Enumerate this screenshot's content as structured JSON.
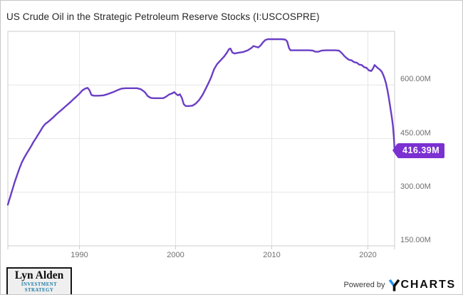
{
  "header": {
    "title": "US Crude Oil in the Strategic Petroleum Reserve Stocks (I:USCOSPRE)"
  },
  "chart_data": {
    "type": "line",
    "title": "US Crude Oil in the Strategic Petroleum Reserve Stocks (I:USCOSPRE)",
    "series_name": "US Crude Oil in the Strategic Petroleum Reserve Stocks",
    "unit": "barrels, millions (M)",
    "xlim": [
      1982.55,
      2022.78
    ],
    "ylim": [
      150,
      750
    ],
    "grid": true,
    "legend_position": "none",
    "line_color": "#6a3ec6",
    "badge_color": "#7b30d2",
    "grid_color": "#e6e6e6",
    "border_color": "#cccccc",
    "label_color": "#6f6f6f",
    "x_ticks": [
      {
        "label": "1990",
        "year": 1990
      },
      {
        "label": "2000",
        "year": 2000
      },
      {
        "label": "2010",
        "year": 2010
      },
      {
        "label": "2020",
        "year": 2020
      }
    ],
    "y_ticks": [
      {
        "label": "600.00M",
        "value": 600
      },
      {
        "label": "450.00M",
        "value": 450
      },
      {
        "label": "300.00M",
        "value": 300
      },
      {
        "label": "150.00M",
        "value": 150
      }
    ],
    "last_value": 416.39,
    "last_value_label": "416.39M",
    "points": [
      [
        1982.55,
        265
      ],
      [
        1982.75,
        283
      ],
      [
        1983.0,
        305
      ],
      [
        1983.25,
        327
      ],
      [
        1983.5,
        347
      ],
      [
        1983.75,
        366
      ],
      [
        1984.0,
        383
      ],
      [
        1984.25,
        396
      ],
      [
        1984.5,
        408
      ],
      [
        1984.75,
        419
      ],
      [
        1985.0,
        430
      ],
      [
        1985.2,
        440
      ],
      [
        1985.45,
        450
      ],
      [
        1985.7,
        461
      ],
      [
        1985.95,
        472
      ],
      [
        1986.2,
        483
      ],
      [
        1986.45,
        491
      ],
      [
        1986.7,
        496
      ],
      [
        1987.0,
        503
      ],
      [
        1987.3,
        510
      ],
      [
        1987.6,
        518
      ],
      [
        1987.9,
        525
      ],
      [
        1988.2,
        532
      ],
      [
        1988.5,
        539
      ],
      [
        1988.8,
        546
      ],
      [
        1989.1,
        553
      ],
      [
        1989.4,
        561
      ],
      [
        1989.7,
        568
      ],
      [
        1990.0,
        576
      ],
      [
        1990.3,
        585
      ],
      [
        1990.6,
        590
      ],
      [
        1990.85,
        592
      ],
      [
        1991.05,
        585
      ],
      [
        1991.25,
        572
      ],
      [
        1991.5,
        570
      ],
      [
        1992.0,
        570
      ],
      [
        1992.5,
        571
      ],
      [
        1993.0,
        575
      ],
      [
        1993.5,
        580
      ],
      [
        1994.0,
        586
      ],
      [
        1994.4,
        590
      ],
      [
        1994.8,
        591
      ],
      [
        1995.4,
        591
      ],
      [
        1996.0,
        591
      ],
      [
        1996.4,
        588
      ],
      [
        1996.8,
        580
      ],
      [
        1997.1,
        569
      ],
      [
        1997.4,
        564
      ],
      [
        1997.7,
        563
      ],
      [
        1998.2,
        563
      ],
      [
        1998.7,
        563
      ],
      [
        1999.0,
        567
      ],
      [
        1999.3,
        573
      ],
      [
        1999.6,
        576
      ],
      [
        1999.85,
        580
      ],
      [
        2000.05,
        575
      ],
      [
        2000.25,
        571
      ],
      [
        2000.45,
        574
      ],
      [
        2000.65,
        564
      ],
      [
        2000.85,
        546
      ],
      [
        2001.05,
        541
      ],
      [
        2001.4,
        541
      ],
      [
        2001.75,
        542
      ],
      [
        2002.1,
        548
      ],
      [
        2002.45,
        558
      ],
      [
        2002.8,
        572
      ],
      [
        2003.1,
        588
      ],
      [
        2003.4,
        604
      ],
      [
        2003.7,
        622
      ],
      [
        2004.0,
        644
      ],
      [
        2004.3,
        658
      ],
      [
        2004.65,
        668
      ],
      [
        2005.0,
        678
      ],
      [
        2005.3,
        689
      ],
      [
        2005.55,
        700
      ],
      [
        2005.7,
        702
      ],
      [
        2005.9,
        691
      ],
      [
        2006.15,
        688
      ],
      [
        2006.5,
        690
      ],
      [
        2007.0,
        692
      ],
      [
        2007.5,
        697
      ],
      [
        2007.85,
        703
      ],
      [
        2008.1,
        709
      ],
      [
        2008.35,
        707
      ],
      [
        2008.6,
        705
      ],
      [
        2008.85,
        711
      ],
      [
        2009.1,
        720
      ],
      [
        2009.35,
        726
      ],
      [
        2009.6,
        728
      ],
      [
        2010.0,
        728
      ],
      [
        2010.5,
        728
      ],
      [
        2011.0,
        728
      ],
      [
        2011.4,
        727
      ],
      [
        2011.6,
        722
      ],
      [
        2011.8,
        703
      ],
      [
        2011.95,
        697
      ],
      [
        2012.4,
        697
      ],
      [
        2012.9,
        697
      ],
      [
        2013.4,
        697
      ],
      [
        2013.9,
        697
      ],
      [
        2014.3,
        696
      ],
      [
        2014.55,
        693
      ],
      [
        2014.85,
        693
      ],
      [
        2015.15,
        696
      ],
      [
        2015.6,
        697
      ],
      [
        2016.1,
        697
      ],
      [
        2016.6,
        697
      ],
      [
        2017.0,
        696
      ],
      [
        2017.3,
        689
      ],
      [
        2017.55,
        681
      ],
      [
        2017.8,
        675
      ],
      [
        2018.05,
        670
      ],
      [
        2018.3,
        669
      ],
      [
        2018.55,
        664
      ],
      [
        2018.85,
        662
      ],
      [
        2019.1,
        657
      ],
      [
        2019.35,
        656
      ],
      [
        2019.6,
        650
      ],
      [
        2019.85,
        648
      ],
      [
        2020.1,
        641
      ],
      [
        2020.35,
        639
      ],
      [
        2020.55,
        647
      ],
      [
        2020.7,
        656
      ],
      [
        2020.85,
        652
      ],
      [
        2021.05,
        647
      ],
      [
        2021.25,
        643
      ],
      [
        2021.45,
        637
      ],
      [
        2021.6,
        628
      ],
      [
        2021.75,
        617
      ],
      [
        2021.9,
        603
      ],
      [
        2022.05,
        584
      ],
      [
        2022.2,
        560
      ],
      [
        2022.35,
        534
      ],
      [
        2022.5,
        508
      ],
      [
        2022.6,
        486
      ],
      [
        2022.7,
        455
      ],
      [
        2022.78,
        416.39
      ]
    ]
  },
  "footer": {
    "lyn_alden": {
      "name": "Lyn Alden",
      "tagline": "INVESTMENT STRATEGY"
    },
    "powered_by": "Powered by",
    "ycharts": {
      "charts": "CHARTS"
    }
  },
  "colors": {
    "ycharts_blue": "#2196f3",
    "lyn_alden_blue": "#1e7ba6",
    "title_color": "#262626"
  }
}
